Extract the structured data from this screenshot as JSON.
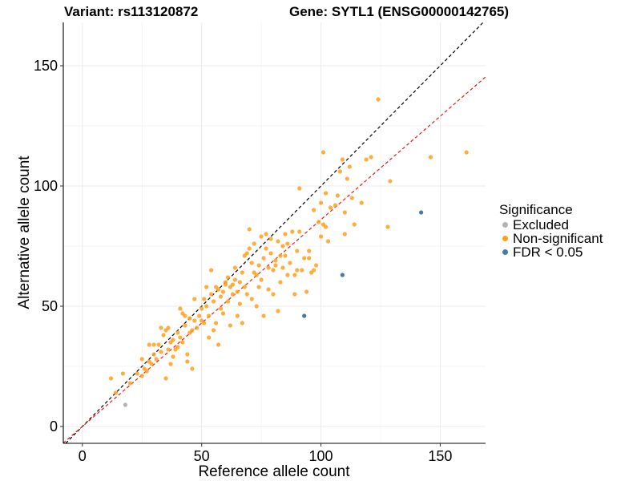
{
  "titles": {
    "variant": "Variant: rs113120872",
    "gene": "Gene: SYTL1 (ENSG00000142765)"
  },
  "legend": {
    "title": "Significance",
    "items": [
      {
        "label": "Excluded",
        "color": "#b3b3b3"
      },
      {
        "label": "Non-significant",
        "color": "#ff9f1a"
      },
      {
        "label": "FDR < 0.05",
        "color": "#4a78a8"
      }
    ]
  },
  "chart_data": {
    "type": "scatter",
    "xlabel": "Reference allele count",
    "ylabel": "Alternative allele count",
    "xlim": [
      -8,
      169
    ],
    "ylim": [
      -7,
      168
    ],
    "xticks": [
      0,
      50,
      100,
      150
    ],
    "yticks": [
      0,
      50,
      100,
      150
    ],
    "grid": true,
    "legend_position": "right",
    "reference_lines": [
      {
        "name": "y = x",
        "slope": 1.0,
        "intercept": 0,
        "color": "#000000",
        "style": "dashed"
      },
      {
        "name": "fit",
        "slope": 0.86,
        "intercept": 0,
        "color": "#e41a1c",
        "style": "dashed"
      }
    ],
    "series": [
      {
        "name": "Excluded",
        "color": "#b3b3b3",
        "points": [
          [
            18,
            9
          ]
        ]
      },
      {
        "name": "Non-significant",
        "color": "#ff9f1a",
        "points": [
          [
            12,
            20
          ],
          [
            14,
            14
          ],
          [
            17,
            22
          ],
          [
            20,
            18
          ],
          [
            23,
            22
          ],
          [
            25,
            21
          ],
          [
            25,
            28
          ],
          [
            26,
            24
          ],
          [
            27,
            23
          ],
          [
            28,
            27
          ],
          [
            28,
            34
          ],
          [
            29,
            26
          ],
          [
            30,
            34
          ],
          [
            30,
            30
          ],
          [
            31,
            28
          ],
          [
            32,
            34
          ],
          [
            33,
            41
          ],
          [
            33,
            31
          ],
          [
            34,
            38
          ],
          [
            35,
            40
          ],
          [
            35,
            20
          ],
          [
            36,
            41
          ],
          [
            36,
            32
          ],
          [
            37,
            26
          ],
          [
            37,
            35
          ],
          [
            38,
            29
          ],
          [
            38,
            36
          ],
          [
            39,
            32
          ],
          [
            40,
            39
          ],
          [
            40,
            33
          ],
          [
            41,
            49
          ],
          [
            41,
            37
          ],
          [
            42,
            47
          ],
          [
            42,
            35
          ],
          [
            43,
            46
          ],
          [
            43,
            42
          ],
          [
            44,
            30
          ],
          [
            44,
            27
          ],
          [
            45,
            45
          ],
          [
            45,
            39
          ],
          [
            46,
            40
          ],
          [
            46,
            24
          ],
          [
            47,
            53
          ],
          [
            47,
            44
          ],
          [
            48,
            41
          ],
          [
            49,
            46
          ],
          [
            50,
            49
          ],
          [
            50,
            44
          ],
          [
            51,
            53
          ],
          [
            51,
            43
          ],
          [
            52,
            58
          ],
          [
            52,
            50
          ],
          [
            53,
            46
          ],
          [
            53,
            37
          ],
          [
            54,
            55
          ],
          [
            54,
            65
          ],
          [
            55,
            52
          ],
          [
            55,
            40
          ],
          [
            56,
            58
          ],
          [
            56,
            43
          ],
          [
            57,
            57
          ],
          [
            57,
            34
          ],
          [
            58,
            54
          ],
          [
            58,
            49
          ],
          [
            59,
            56
          ],
          [
            59,
            47
          ],
          [
            60,
            59
          ],
          [
            60,
            60
          ],
          [
            61,
            62
          ],
          [
            61,
            52
          ],
          [
            62,
            58
          ],
          [
            62,
            42
          ],
          [
            63,
            59
          ],
          [
            63,
            55
          ],
          [
            64,
            61
          ],
          [
            64,
            66
          ],
          [
            65,
            56
          ],
          [
            65,
            46
          ],
          [
            66,
            60
          ],
          [
            66,
            51
          ],
          [
            67,
            64
          ],
          [
            67,
            43
          ],
          [
            68,
            71
          ],
          [
            68,
            58
          ],
          [
            69,
            72
          ],
          [
            69,
            55
          ],
          [
            70,
            74
          ],
          [
            70,
            82
          ],
          [
            71,
            68
          ],
          [
            71,
            53
          ],
          [
            72,
            64
          ],
          [
            72,
            76
          ],
          [
            73,
            63
          ],
          [
            73,
            50
          ],
          [
            74,
            67
          ],
          [
            74,
            58
          ],
          [
            75,
            79
          ],
          [
            75,
            61
          ],
          [
            76,
            70
          ],
          [
            76,
            46
          ],
          [
            77,
            80
          ],
          [
            77,
            74
          ],
          [
            78,
            66
          ],
          [
            78,
            57
          ],
          [
            79,
            78
          ],
          [
            79,
            72
          ],
          [
            80,
            65
          ],
          [
            80,
            55
          ],
          [
            81,
            69
          ],
          [
            81,
            67
          ],
          [
            82,
            77
          ],
          [
            82,
            48
          ],
          [
            83,
            71
          ],
          [
            83,
            60
          ],
          [
            84,
            66
          ],
          [
            84,
            75
          ],
          [
            85,
            80
          ],
          [
            85,
            71
          ],
          [
            86,
            63
          ],
          [
            86,
            76
          ],
          [
            87,
            68
          ],
          [
            88,
            81
          ],
          [
            89,
            55
          ],
          [
            89,
            63
          ],
          [
            90,
            73
          ],
          [
            90,
            65
          ],
          [
            91,
            99
          ],
          [
            91,
            81
          ],
          [
            92,
            65
          ],
          [
            93,
            70
          ],
          [
            94,
            56
          ],
          [
            95,
            73
          ],
          [
            95,
            70
          ],
          [
            96,
            64
          ],
          [
            97,
            65
          ],
          [
            97,
            90
          ],
          [
            98,
            67
          ],
          [
            99,
            85
          ],
          [
            100,
            93
          ],
          [
            100,
            79
          ],
          [
            101,
            114
          ],
          [
            101,
            84
          ],
          [
            102,
            97
          ],
          [
            102,
            83
          ],
          [
            103,
            77
          ],
          [
            104,
            91
          ],
          [
            106,
            92
          ],
          [
            107,
            96
          ],
          [
            108,
            106
          ],
          [
            109,
            111
          ],
          [
            110,
            89
          ],
          [
            110,
            80
          ],
          [
            111,
            103
          ],
          [
            112,
            108
          ],
          [
            113,
            95
          ],
          [
            114,
            84
          ],
          [
            117,
            93
          ],
          [
            119,
            111
          ],
          [
            121,
            112
          ],
          [
            124,
            136
          ],
          [
            128,
            83
          ],
          [
            129,
            102
          ],
          [
            146,
            112
          ],
          [
            161,
            114
          ]
        ]
      },
      {
        "name": "FDR < 0.05",
        "color": "#4a78a8",
        "points": [
          [
            93,
            46
          ],
          [
            109,
            63
          ],
          [
            142,
            89
          ]
        ]
      }
    ]
  }
}
